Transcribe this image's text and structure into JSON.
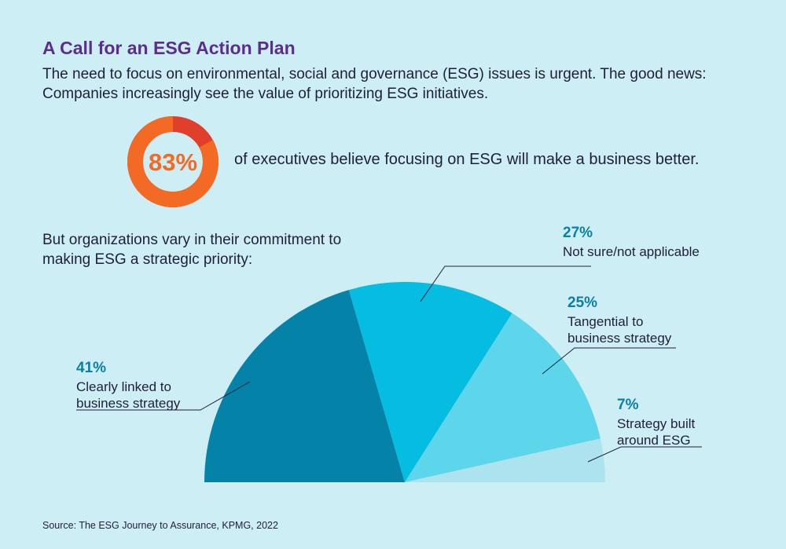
{
  "header": {
    "title": "A Call for an ESG Action Plan",
    "intro": "The need to focus on environmental, social and governance (ESG) issues is urgent. The good news: Companies increasingly see the value of prioritizing ESG initiatives."
  },
  "stat": {
    "value": 83,
    "value_label": "83%",
    "text": "of executives believe focusing on ESG will make a business better.",
    "colors": {
      "fill": "#f26a24",
      "rest": "#e0402b",
      "label": "#f26a24"
    }
  },
  "subhead": "But organizations vary in their commitment to making ESG a strategic priority:",
  "source": "Source: The ESG Journey to Assurance, KPMG, 2022",
  "chart_data": {
    "type": "pie",
    "layout": "half-donut-semicircle",
    "slices": [
      {
        "value": 41,
        "pct_label": "41%",
        "lines": [
          "Clearly linked to",
          "business strategy"
        ],
        "color": "#0482a8"
      },
      {
        "value": 27,
        "pct_label": "27%",
        "lines": [
          "Not sure/not applicable"
        ],
        "color": "#04bde0"
      },
      {
        "value": 25,
        "pct_label": "25%",
        "lines": [
          "Tangential to",
          "business strategy"
        ],
        "color": "#5dd6ec"
      },
      {
        "value": 7,
        "pct_label": "7%",
        "lines": [
          "Strategy built",
          "around ESG"
        ],
        "color": "#ace3ee"
      }
    ],
    "label_color": "#0a7fa8",
    "text_color": "#1f1f3a"
  }
}
